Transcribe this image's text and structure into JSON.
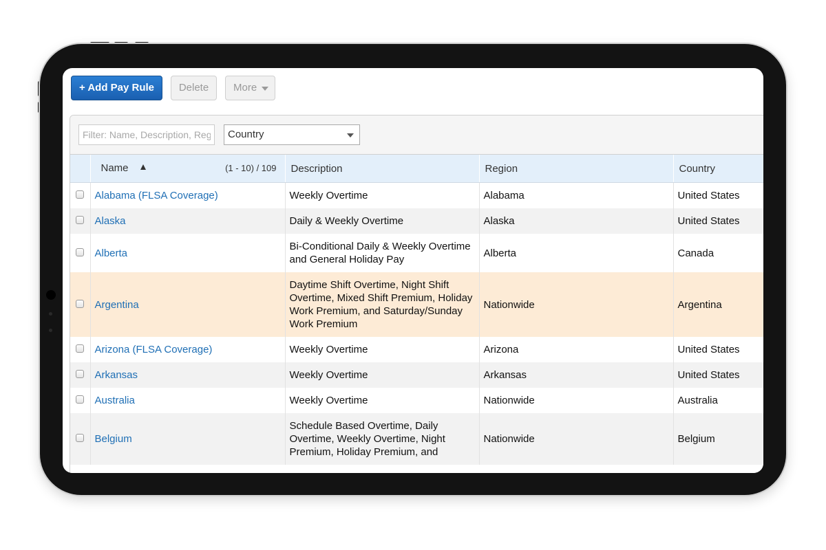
{
  "toolbar": {
    "add_label": "+ Add Pay Rule",
    "delete_label": "Delete",
    "more_label": "More"
  },
  "filters": {
    "name_placeholder": "Filter: Name, Description, Region",
    "country_value": "Country"
  },
  "table": {
    "headers": {
      "name": "Name",
      "pager": "(1 - 10) / 109",
      "description": "Description",
      "region": "Region",
      "country": "Country"
    },
    "rows": [
      {
        "name": "Alabama (FLSA Coverage)",
        "description": "Weekly Overtime",
        "region": "Alabama",
        "country": "United States"
      },
      {
        "name": "Alaska",
        "description": "Daily & Weekly Overtime",
        "region": "Alaska",
        "country": "United States"
      },
      {
        "name": "Alberta",
        "description": "Bi-Conditional Daily & Weekly Overtime and General Holiday Pay",
        "region": "Alberta",
        "country": "Canada"
      },
      {
        "name": "Argentina",
        "description": "Daytime Shift Overtime, Night Shift Overtime, Mixed Shift Premium, Holiday Work Premium, and Saturday/Sunday Work Premium",
        "region": "Nationwide",
        "country": "Argentina"
      },
      {
        "name": "Arizona (FLSA Coverage)",
        "description": "Weekly Overtime",
        "region": "Arizona",
        "country": "United States"
      },
      {
        "name": "Arkansas",
        "description": "Weekly Overtime",
        "region": "Arkansas",
        "country": "United States"
      },
      {
        "name": "Australia",
        "description": "Weekly Overtime",
        "region": "Nationwide",
        "country": "Australia"
      },
      {
        "name": "Belgium",
        "description": "Schedule Based Overtime, Daily Overtime, Weekly Overtime, Night Premium, Holiday Premium, and",
        "region": "Nationwide",
        "country": "Belgium"
      }
    ]
  },
  "colors": {
    "primary_button": "#1a5fb0",
    "link": "#1f6fb5",
    "header_bg": "#e3effa",
    "highlight_row": "#fdebd6"
  }
}
